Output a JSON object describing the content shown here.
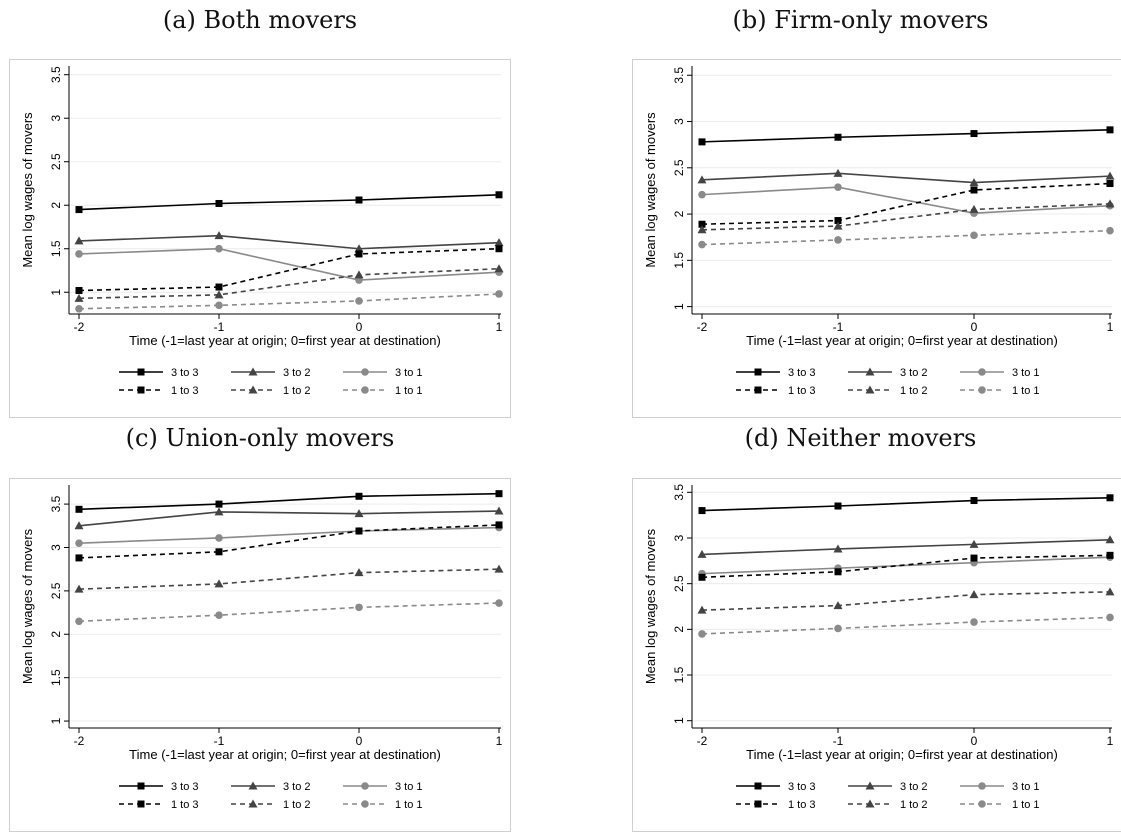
{
  "chart_data": [
    {
      "type": "line",
      "title": "(a) Both movers",
      "xlabel": "Time (-1=last year at origin; 0=first year at destination)",
      "ylabel": "Mean log wages of movers",
      "x": [
        -2,
        -1,
        0,
        1
      ],
      "xticks": [
        "-2",
        "-1",
        "0",
        "1"
      ],
      "yticks": [
        "1",
        "1.5",
        "2",
        "2.5",
        "3",
        "3.5"
      ],
      "ylim": [
        0.75,
        3.6
      ],
      "series": [
        {
          "name": "3 to 3",
          "values": [
            1.95,
            2.02,
            2.06,
            2.12
          ]
        },
        {
          "name": "3 to 2",
          "values": [
            1.59,
            1.65,
            1.5,
            1.57
          ]
        },
        {
          "name": "3 to 1",
          "values": [
            1.44,
            1.5,
            1.14,
            1.23
          ]
        },
        {
          "name": "1 to 3",
          "values": [
            1.02,
            1.06,
            1.44,
            1.5
          ]
        },
        {
          "name": "1 to 2",
          "values": [
            0.93,
            0.97,
            1.2,
            1.27
          ]
        },
        {
          "name": "1 to 1",
          "values": [
            0.81,
            0.85,
            0.9,
            0.98
          ]
        }
      ]
    },
    {
      "type": "line",
      "title": "(b) Firm-only movers",
      "xlabel": "Time (-1=last year at origin; 0=first year at destination)",
      "ylabel": "Mean log wages of movers",
      "x": [
        -2,
        -1,
        0,
        1
      ],
      "xticks": [
        "-2",
        "-1",
        "0",
        "1"
      ],
      "yticks": [
        "1",
        "1.5",
        "2",
        "2.5",
        "3",
        "3.5"
      ],
      "ylim": [
        0.92,
        3.6
      ],
      "series": [
        {
          "name": "3 to 3",
          "values": [
            2.78,
            2.83,
            2.87,
            2.91
          ]
        },
        {
          "name": "3 to 2",
          "values": [
            2.37,
            2.44,
            2.34,
            2.41
          ]
        },
        {
          "name": "3 to 1",
          "values": [
            2.21,
            2.29,
            2.01,
            2.09
          ]
        },
        {
          "name": "1 to 3",
          "values": [
            1.89,
            1.93,
            2.26,
            2.33
          ]
        },
        {
          "name": "1 to 2",
          "values": [
            1.83,
            1.87,
            2.05,
            2.11
          ]
        },
        {
          "name": "1 to 1",
          "values": [
            1.67,
            1.72,
            1.77,
            1.82
          ]
        }
      ]
    },
    {
      "type": "line",
      "title": "(c) Union-only movers",
      "xlabel": "Time (-1=last year at origin; 0=first year at destination)",
      "ylabel": "Mean log wages of movers",
      "x": [
        -2,
        -1,
        0,
        1
      ],
      "xticks": [
        "-2",
        "-1",
        "0",
        "1"
      ],
      "yticks": [
        "1",
        "1.5",
        "2",
        "2.5",
        "3",
        "3.5"
      ],
      "ylim": [
        0.92,
        3.72
      ],
      "series": [
        {
          "name": "3 to 3",
          "values": [
            3.44,
            3.5,
            3.59,
            3.62
          ]
        },
        {
          "name": "3 to 2",
          "values": [
            3.25,
            3.41,
            3.39,
            3.42
          ]
        },
        {
          "name": "3 to 1",
          "values": [
            3.05,
            3.11,
            3.19,
            3.23
          ]
        },
        {
          "name": "1 to 3",
          "values": [
            2.88,
            2.95,
            3.19,
            3.26
          ]
        },
        {
          "name": "1 to 2",
          "values": [
            2.52,
            2.58,
            2.71,
            2.75
          ]
        },
        {
          "name": "1 to 1",
          "values": [
            2.15,
            2.22,
            2.31,
            2.36
          ]
        }
      ]
    },
    {
      "type": "line",
      "title": "(d) Neither movers",
      "xlabel": "Time (-1=last year at origin; 0=first year at destination)",
      "ylabel": "Mean log wages of movers",
      "x": [
        -2,
        -1,
        0,
        1
      ],
      "xticks": [
        "-2",
        "-1",
        "0",
        "1"
      ],
      "yticks": [
        "1",
        "1.5",
        "2",
        "2.5",
        "3",
        "3.5"
      ],
      "ylim": [
        0.92,
        3.58
      ],
      "series": [
        {
          "name": "3 to 3",
          "values": [
            3.3,
            3.35,
            3.41,
            3.44
          ]
        },
        {
          "name": "3 to 2",
          "values": [
            2.82,
            2.88,
            2.93,
            2.98
          ]
        },
        {
          "name": "3 to 1",
          "values": [
            2.61,
            2.67,
            2.73,
            2.79
          ]
        },
        {
          "name": "1 to 3",
          "values": [
            2.57,
            2.63,
            2.78,
            2.81
          ]
        },
        {
          "name": "1 to 2",
          "values": [
            2.21,
            2.26,
            2.38,
            2.41
          ]
        },
        {
          "name": "1 to 1",
          "values": [
            1.95,
            2.01,
            2.08,
            2.13
          ]
        }
      ]
    }
  ],
  "series_style": [
    {
      "color": "#000000",
      "dash": "solid",
      "marker": "square"
    },
    {
      "color": "#444444",
      "dash": "solid",
      "marker": "triangle"
    },
    {
      "color": "#8a8a8a",
      "dash": "solid",
      "marker": "circle"
    },
    {
      "color": "#000000",
      "dash": "dashed",
      "marker": "square"
    },
    {
      "color": "#444444",
      "dash": "dashed",
      "marker": "triangle"
    },
    {
      "color": "#8a8a8a",
      "dash": "dashed",
      "marker": "circle"
    }
  ]
}
